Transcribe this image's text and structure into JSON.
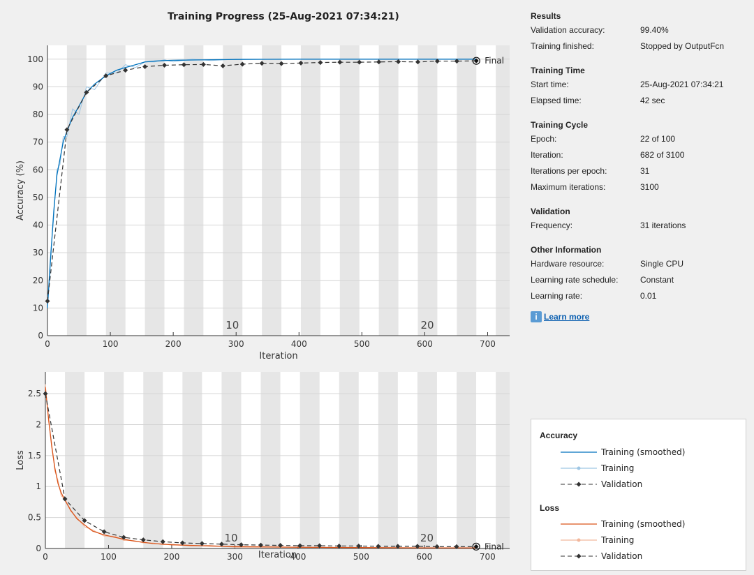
{
  "title": "Training Progress (25-Aug-2021 07:34:21)",
  "colors": {
    "acc_smoothed": "#0072bd",
    "acc_training": "#9ec6e4",
    "loss_smoothed": "#d95319",
    "loss_training": "#f2b79c",
    "validation": "#333333"
  },
  "info": {
    "results": {
      "heading": "Results",
      "rows": [
        {
          "key": "Validation accuracy:",
          "value": "99.40%"
        },
        {
          "key": "Training finished:",
          "value": "Stopped by OutputFcn"
        }
      ]
    },
    "training_time": {
      "heading": "Training Time",
      "rows": [
        {
          "key": "Start time:",
          "value": "25-Aug-2021 07:34:21"
        },
        {
          "key": "Elapsed time:",
          "value": "42 sec"
        }
      ]
    },
    "training_cycle": {
      "heading": "Training Cycle",
      "rows": [
        {
          "key": "Epoch:",
          "value": "22 of 100"
        },
        {
          "key": "Iteration:",
          "value": "682 of 3100"
        },
        {
          "key": "Iterations per epoch:",
          "value": "31"
        },
        {
          "key": "Maximum iterations:",
          "value": "3100"
        }
      ]
    },
    "validation": {
      "heading": "Validation",
      "rows": [
        {
          "key": "Frequency:",
          "value": "31 iterations"
        }
      ]
    },
    "other": {
      "heading": "Other Information",
      "rows": [
        {
          "key": "Hardware resource:",
          "value": "Single CPU"
        },
        {
          "key": "Learning rate schedule:",
          "value": "Constant"
        },
        {
          "key": "Learning rate:",
          "value": "0.01"
        }
      ]
    },
    "learn_more": "Learn more",
    "info_icon": "info-icon"
  },
  "legend": {
    "accuracy_heading": "Accuracy",
    "loss_heading": "Loss",
    "training_smoothed": "Training (smoothed)",
    "training": "Training",
    "validation": "Validation"
  },
  "chart_data": [
    {
      "type": "line",
      "name": "accuracy",
      "title": "Training Progress (25-Aug-2021 07:34:21)",
      "xlabel": "Iteration",
      "ylabel": "Accuracy (%)",
      "xlim": [
        0,
        735
      ],
      "ylim": [
        0,
        105
      ],
      "xticks": [
        0,
        100,
        200,
        300,
        400,
        500,
        600,
        700
      ],
      "yticks": [
        0,
        10,
        20,
        30,
        40,
        50,
        60,
        70,
        80,
        90,
        100
      ],
      "iterations_per_epoch": 31,
      "epoch_labels": [
        {
          "epoch": "10",
          "x": 294
        },
        {
          "epoch": "20",
          "x": 604
        }
      ],
      "final_label": "Final",
      "final_iteration": 682,
      "series": [
        {
          "name": "Training (smoothed)",
          "x": [
            0,
            5,
            10,
            15,
            20,
            25,
            31,
            40,
            50,
            62,
            75,
            93,
            110,
            124,
            140,
            155,
            170,
            186,
            200,
            230,
            260,
            300,
            400,
            500,
            600,
            682
          ],
          "y": [
            10,
            28,
            45,
            58,
            64,
            70,
            74,
            79,
            83,
            88,
            91,
            94,
            96,
            97,
            98,
            99,
            99.3,
            99.5,
            99.6,
            99.7,
            99.8,
            99.9,
            100,
            100,
            100,
            100
          ]
        },
        {
          "name": "Training",
          "x": [
            0,
            5,
            10,
            15,
            20,
            25,
            31,
            40,
            50,
            62,
            75,
            93,
            110,
            124,
            140,
            155,
            170,
            186,
            200,
            230,
            260,
            300,
            400,
            500,
            600,
            682
          ],
          "y": [
            11,
            30,
            43,
            60,
            62,
            72,
            72,
            82,
            80,
            90,
            89,
            95,
            95,
            98,
            97,
            99,
            99,
            99.8,
            99,
            100,
            99.5,
            100,
            100,
            100,
            100,
            100
          ]
        },
        {
          "name": "Validation",
          "x": [
            0,
            31,
            62,
            93,
            124,
            155,
            186,
            217,
            248,
            279,
            310,
            341,
            372,
            403,
            434,
            465,
            496,
            527,
            558,
            589,
            620,
            651,
            682
          ],
          "y": [
            12.5,
            74.5,
            88,
            94,
            96,
            97.3,
            97.8,
            98,
            98.1,
            97.6,
            98.2,
            98.5,
            98.4,
            98.6,
            98.8,
            98.9,
            98.9,
            99,
            99.1,
            99,
            99.3,
            99.3,
            99.4
          ]
        }
      ]
    },
    {
      "type": "line",
      "name": "loss",
      "xlabel": "Iteration",
      "ylabel": "Loss",
      "xlim": [
        0,
        735
      ],
      "ylim": [
        0,
        2.85
      ],
      "xticks": [
        0,
        100,
        200,
        300,
        400,
        500,
        600,
        700
      ],
      "yticks": [
        0,
        0.5,
        1,
        1.5,
        2,
        2.5
      ],
      "ytick_labels": [
        "0",
        "0.5",
        "1",
        "1.5",
        "2",
        "2.5"
      ],
      "iterations_per_epoch": 31,
      "epoch_labels": [
        {
          "epoch": "10",
          "x": 294
        },
        {
          "epoch": "20",
          "x": 604
        }
      ],
      "final_label": "Final",
      "final_iteration": 682,
      "series": [
        {
          "name": "Training (smoothed)",
          "x": [
            0,
            5,
            10,
            15,
            20,
            25,
            31,
            40,
            50,
            62,
            75,
            93,
            110,
            124,
            140,
            155,
            170,
            186,
            200,
            230,
            260,
            300,
            400,
            500,
            600,
            682
          ],
          "y": [
            2.6,
            2.1,
            1.65,
            1.3,
            1.05,
            0.9,
            0.78,
            0.62,
            0.48,
            0.38,
            0.28,
            0.22,
            0.18,
            0.15,
            0.12,
            0.1,
            0.08,
            0.07,
            0.06,
            0.05,
            0.04,
            0.03,
            0.02,
            0.015,
            0.01,
            0.01
          ]
        },
        {
          "name": "Training",
          "x": [
            0,
            5,
            10,
            15,
            20,
            25,
            31,
            40,
            50,
            62,
            75,
            93,
            110,
            124,
            140,
            155,
            170,
            186,
            200,
            230,
            260,
            300,
            400,
            500,
            600,
            682
          ],
          "y": [
            2.65,
            2.05,
            1.7,
            1.25,
            1.1,
            0.85,
            0.8,
            0.6,
            0.5,
            0.35,
            0.3,
            0.2,
            0.2,
            0.13,
            0.13,
            0.09,
            0.09,
            0.06,
            0.07,
            0.04,
            0.05,
            0.02,
            0.02,
            0.01,
            0.01,
            0.01
          ]
        },
        {
          "name": "Validation",
          "x": [
            0,
            31,
            62,
            93,
            124,
            155,
            186,
            217,
            248,
            279,
            310,
            341,
            372,
            403,
            434,
            465,
            496,
            527,
            558,
            589,
            620,
            651,
            682
          ],
          "y": [
            2.5,
            0.8,
            0.45,
            0.27,
            0.18,
            0.14,
            0.11,
            0.09,
            0.08,
            0.07,
            0.06,
            0.055,
            0.05,
            0.045,
            0.045,
            0.04,
            0.04,
            0.035,
            0.035,
            0.035,
            0.03,
            0.03,
            0.03
          ]
        }
      ]
    }
  ]
}
